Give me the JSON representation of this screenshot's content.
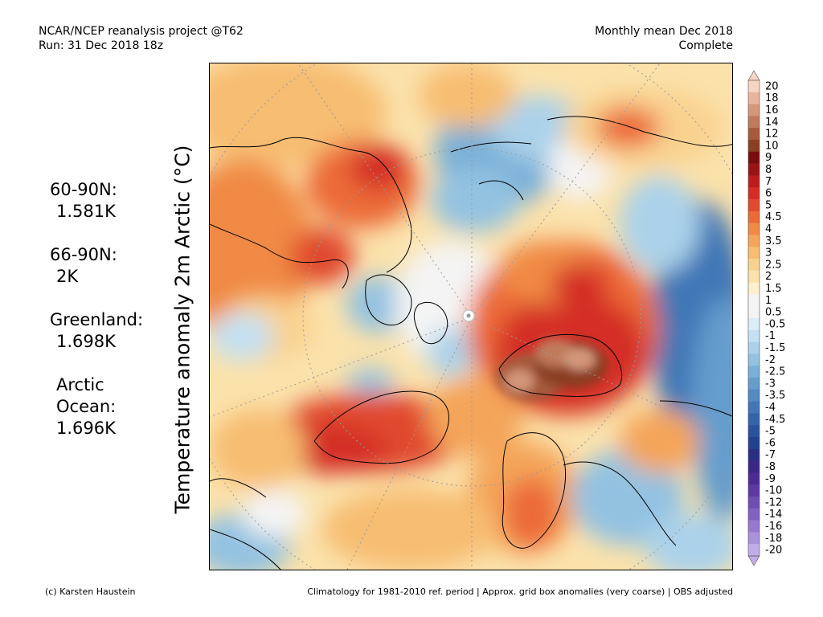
{
  "header": {
    "left_line1": "NCAR/NCEP reanalysis project @T62",
    "left_line2": "Run: 31 Dec 2018 18z",
    "right_line1": "Monthly mean Dec 2018",
    "right_line2": "Complete"
  },
  "y_label": "Temperature anomaly 2m Arctic (°C)",
  "stats": [
    {
      "label": "60-90N:",
      "value": "1.581K"
    },
    {
      "label": "66-90N:",
      "value": "2K"
    },
    {
      "label": "Greenland:",
      "value": "1.698K"
    },
    {
      "label": "Arctic",
      "label2": "Ocean:",
      "value": "1.696K"
    }
  ],
  "colorbar": {
    "labels": [
      "20",
      "18",
      "16",
      "14",
      "12",
      "10",
      "9",
      "8",
      "7",
      "6",
      "5",
      "4.5",
      "4",
      "3.5",
      "3",
      "2.5",
      "2",
      "1.5",
      "1",
      "0.5",
      "-0.5",
      "-1",
      "-1.5",
      "-2",
      "-2.5",
      "-3",
      "-3.5",
      "-4",
      "-4.5",
      "-5",
      "-6",
      "-7",
      "-8",
      "-9",
      "-10",
      "-12",
      "-14",
      "-16",
      "-18",
      "-20"
    ],
    "colors": [
      "#f7d4c2",
      "#e8b49b",
      "#d4977a",
      "#bf7a5c",
      "#a65a3c",
      "#8a3e22",
      "#7a0d0d",
      "#9b1414",
      "#bd1c1c",
      "#d42d25",
      "#e04a2e",
      "#ec6a37",
      "#f08a44",
      "#f4a55a",
      "#f7bd72",
      "#f9d290",
      "#fbe2ab",
      "#fdf0cc",
      "#f4f4f4",
      "#f4f4f4",
      "#dcedf8",
      "#c4e0f2",
      "#abd2ea",
      "#93c2e1",
      "#7ab0d7",
      "#659dcd",
      "#528ac2",
      "#4177b6",
      "#3465aa",
      "#2a539d",
      "#22418f",
      "#2b2f83",
      "#3a2787",
      "#4c2b94",
      "#5d3aa3",
      "#6f4db2",
      "#8262c1",
      "#9679cf",
      "#aa92dc",
      "#c0adea"
    ]
  },
  "footer": {
    "left": "(c) Karsten Haustein",
    "right": "Climatology for 1981-2010 ref. period | Approx. grid box anomalies (very coarse) | OBS adjusted"
  }
}
